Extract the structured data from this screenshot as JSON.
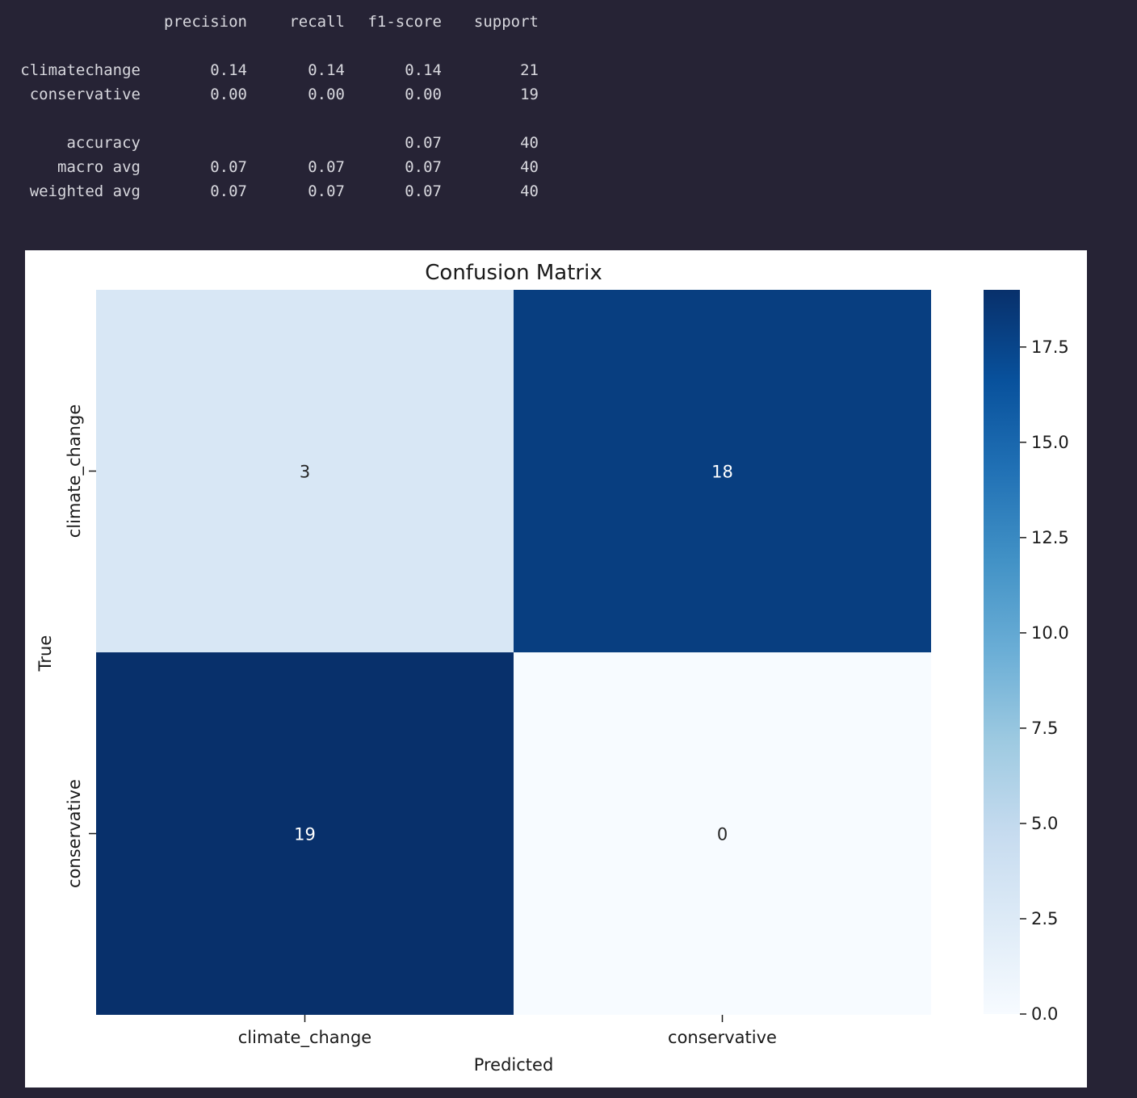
{
  "report": {
    "headers": [
      "precision",
      "recall",
      "f1-score",
      "support"
    ],
    "rows": [
      {
        "label": "climatechange",
        "precision": "0.14",
        "recall": "0.14",
        "f1": "0.14",
        "support": "21"
      },
      {
        "label": "conservative",
        "precision": "0.00",
        "recall": "0.00",
        "f1": "0.00",
        "support": "19"
      },
      {
        "label": "accuracy",
        "precision": "",
        "recall": "",
        "f1": "0.07",
        "support": "40"
      },
      {
        "label": "macro avg",
        "precision": "0.07",
        "recall": "0.07",
        "f1": "0.07",
        "support": "40"
      },
      {
        "label": "weighted avg",
        "precision": "0.07",
        "recall": "0.07",
        "f1": "0.07",
        "support": "40"
      }
    ]
  },
  "chart_data": {
    "type": "heatmap",
    "title": "Confusion Matrix",
    "xlabel": "Predicted",
    "ylabel": "True",
    "x_categories": [
      "climate_change",
      "conservative"
    ],
    "y_categories": [
      "climate_change",
      "conservative"
    ],
    "values": [
      [
        3,
        18
      ],
      [
        19,
        0
      ]
    ],
    "colormap": "Blues",
    "color_range": [
      0,
      19
    ],
    "colorbar_ticks": [
      "0.0",
      "2.5",
      "5.0",
      "7.5",
      "10.0",
      "12.5",
      "15.0",
      "17.5"
    ],
    "colors": {
      "low": "#f7fbff",
      "high": "#08306b",
      "background": "#262335",
      "text": "#d8d8de"
    }
  }
}
